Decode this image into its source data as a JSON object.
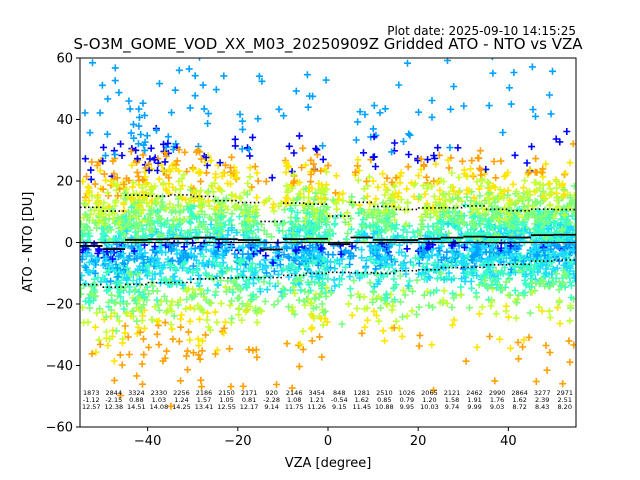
{
  "plot_date": "Plot date: 2025-09-10 14:15:25",
  "chart_data": {
    "type": "scatter",
    "title": "S-O3M_GOME_VOD_XX_M03_20250909Z Gridded ATO - NTO vs VZA",
    "xlabel": "VZA [degree]",
    "ylabel": "ATO - NTO [DU]",
    "xlim": [
      -55,
      55
    ],
    "ylim": [
      -60,
      60
    ],
    "xticks": [
      -40,
      -20,
      0,
      20,
      40
    ],
    "yticks": [
      -60,
      -40,
      -20,
      0,
      20,
      40,
      60
    ],
    "marker": "+",
    "colors": [
      "#0000ff",
      "#00a0ff",
      "#1bdcff",
      "#3bffc3",
      "#7dff7a",
      "#c3ff35",
      "#ffe600",
      "#ffa000"
    ],
    "zero_line": 0,
    "bin_width": 5,
    "bins": [
      {
        "vza": -52.5,
        "count": "1873",
        "mean": "-1.12",
        "std": "12.57",
        "mean_val": -1.12,
        "std_val": 12.57
      },
      {
        "vza": -47.5,
        "count": "2844",
        "mean": "-2.15",
        "std": "12.38",
        "mean_val": -2.15,
        "std_val": 12.38
      },
      {
        "vza": -42.5,
        "count": "3324",
        "mean": "0.88",
        "std": "14.51",
        "mean_val": 0.88,
        "std_val": 14.51
      },
      {
        "vza": -37.5,
        "count": "2330",
        "mean": "1.03",
        "std": "14.08",
        "mean_val": 1.03,
        "std_val": 14.08
      },
      {
        "vza": -32.5,
        "count": "2256",
        "mean": "1.24",
        "std": "14.25",
        "mean_val": 1.24,
        "std_val": 14.25
      },
      {
        "vza": -27.5,
        "count": "2186",
        "mean": "1.57",
        "std": "13.41",
        "mean_val": 1.57,
        "std_val": 13.41
      },
      {
        "vza": -22.5,
        "count": "2150",
        "mean": "1.05",
        "std": "12.55",
        "mean_val": 1.05,
        "std_val": 12.55
      },
      {
        "vza": -17.5,
        "count": "2171",
        "mean": "0.81",
        "std": "12.17",
        "mean_val": 0.81,
        "std_val": 12.17
      },
      {
        "vza": -12.5,
        "count": "920",
        "mean": "-2.28",
        "std": "9.14",
        "mean_val": -2.28,
        "std_val": 9.14
      },
      {
        "vza": -7.5,
        "count": "2146",
        "mean": "1.08",
        "std": "11.75",
        "mean_val": 1.08,
        "std_val": 11.75
      },
      {
        "vza": -2.5,
        "count": "3454",
        "mean": "1.21",
        "std": "11.26",
        "mean_val": 1.21,
        "std_val": 11.26
      },
      {
        "vza": 2.5,
        "count": "848",
        "mean": "-0.54",
        "std": "9.15",
        "mean_val": -0.54,
        "std_val": 9.15
      },
      {
        "vza": 7.5,
        "count": "1281",
        "mean": "1.62",
        "std": "11.45",
        "mean_val": 1.62,
        "std_val": 11.45
      },
      {
        "vza": 12.5,
        "count": "2510",
        "mean": "0.85",
        "std": "10.88",
        "mean_val": 0.85,
        "std_val": 10.88
      },
      {
        "vza": 17.5,
        "count": "1026",
        "mean": "0.79",
        "std": "9.95",
        "mean_val": 0.79,
        "std_val": 9.95
      },
      {
        "vza": 22.5,
        "count": "2065",
        "mean": "1.20",
        "std": "10.03",
        "mean_val": 1.2,
        "std_val": 10.03
      },
      {
        "vza": 27.5,
        "count": "2121",
        "mean": "1.58",
        "std": "9.74",
        "mean_val": 1.58,
        "std_val": 9.74
      },
      {
        "vza": 32.5,
        "count": "2462",
        "mean": "1.91",
        "std": "9.99",
        "mean_val": 1.91,
        "std_val": 9.99
      },
      {
        "vza": 37.5,
        "count": "2990",
        "mean": "1.76",
        "std": "9.03",
        "mean_val": 1.76,
        "std_val": 9.03
      },
      {
        "vza": 42.5,
        "count": "2864",
        "mean": "1.62",
        "std": "8.72",
        "mean_val": 1.62,
        "std_val": 8.72
      },
      {
        "vza": 47.5,
        "count": "3277",
        "mean": "2.39",
        "std": "8.43",
        "mean_val": 2.39,
        "std_val": 8.43
      },
      {
        "vza": 52.5,
        "count": "2971",
        "mean": "2.51",
        "std": "8.20",
        "mean_val": 2.51,
        "std_val": 8.2
      }
    ]
  }
}
